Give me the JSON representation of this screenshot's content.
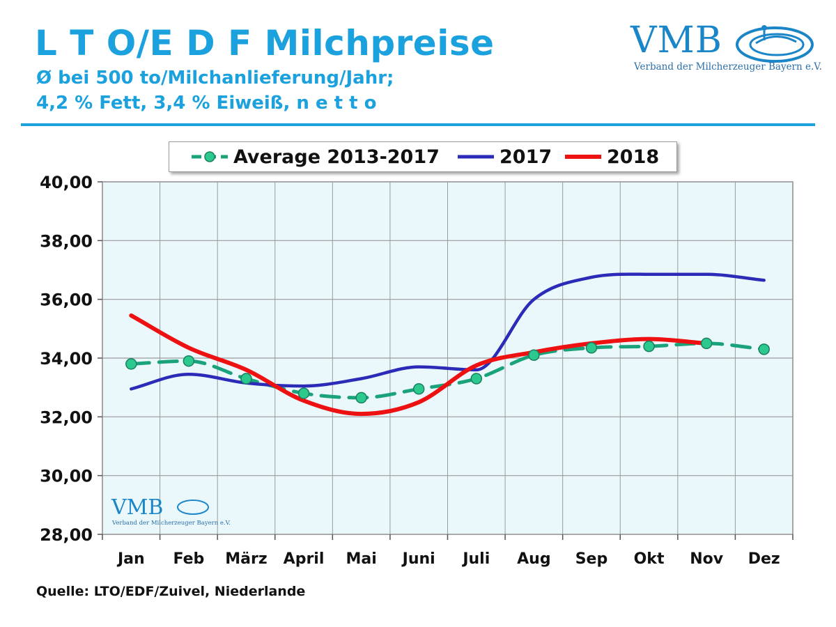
{
  "header": {
    "title": "L T O/E D F Milchpreise",
    "subtitle_line1": "Ø bei 500 to/Milchanlieferung/Jahr;",
    "subtitle_line2": "4,2 % Fett, 3,4 % Eiweiß, n e t t o"
  },
  "logo": {
    "name": "VMB",
    "tagline": "Verband der Milcherzeuger Bayern e.V."
  },
  "source": "Quelle: LTO/EDF/Zuivel, Niederlande",
  "colors": {
    "title": "#1ba1dd",
    "average": "#1aa37a",
    "average_marker": "#2cc98f",
    "y2017": "#2b2bb8",
    "y2018": "#ee1111",
    "plot_bg": "#eaf8fc",
    "grid": "#9a9a9a"
  },
  "chart_data": {
    "type": "line",
    "title": "L T O/E D F Milchpreise",
    "xlabel": "",
    "ylabel": "",
    "categories": [
      "Jan",
      "Feb",
      "März",
      "April",
      "Mai",
      "Juni",
      "Juli",
      "Aug",
      "Sep",
      "Okt",
      "Nov",
      "Dez"
    ],
    "ylim": [
      28,
      40
    ],
    "yticks": [
      40,
      38,
      36,
      34,
      32,
      30,
      28
    ],
    "ytick_labels": [
      "40,00",
      "38,00",
      "36,00",
      "34,00",
      "32,00",
      "30,00",
      "28,00"
    ],
    "grid": true,
    "legend_position": "top",
    "series": [
      {
        "name": "Average 2013-2017",
        "style": "dashed-markers",
        "values": [
          33.8,
          33.9,
          33.3,
          32.8,
          32.65,
          32.95,
          33.3,
          34.1,
          34.35,
          34.4,
          34.5,
          34.3
        ]
      },
      {
        "name": "2017",
        "style": "smooth",
        "values": [
          32.95,
          33.45,
          33.15,
          33.05,
          33.3,
          33.7,
          33.6,
          36.0,
          36.75,
          36.85,
          36.85,
          36.65
        ]
      },
      {
        "name": "2018",
        "style": "smooth",
        "values": [
          35.45,
          34.35,
          33.6,
          32.55,
          32.1,
          32.5,
          33.75,
          34.2,
          34.5,
          34.65,
          34.5,
          null
        ]
      }
    ]
  }
}
